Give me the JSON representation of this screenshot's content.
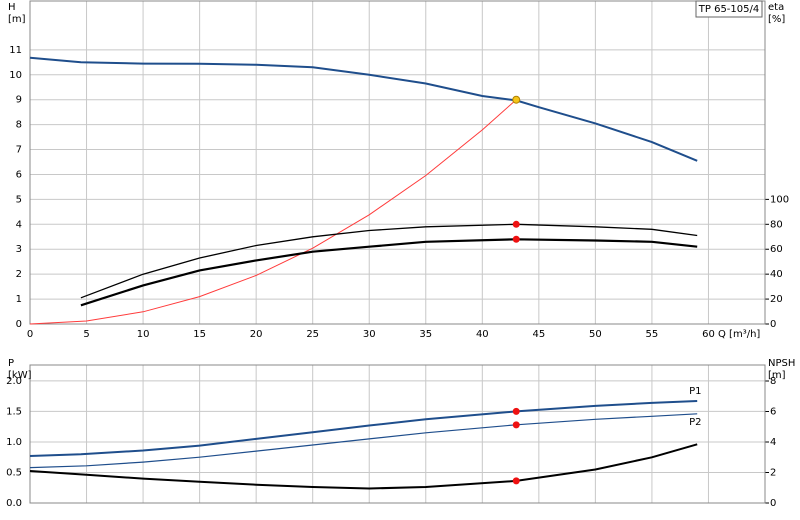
{
  "chart_data": [
    {
      "type": "line",
      "y_label": "H",
      "y_unit": "[m]",
      "y2_label": "eta",
      "y2_unit": "[%]",
      "x_label": "Q [m³/h]",
      "title": "TP 65-105/4",
      "xlim": [
        0,
        65
      ],
      "xticks": [
        0,
        5,
        10,
        15,
        20,
        25,
        30,
        35,
        40,
        45,
        50,
        55,
        60
      ],
      "ylim": [
        0,
        12.96
      ],
      "yticks": [
        0,
        1,
        2,
        3,
        4,
        5,
        6,
        7,
        8,
        9,
        10,
        11
      ],
      "y2lim": [
        0,
        259.2
      ],
      "y2ticks": [
        0,
        20,
        40,
        60,
        80,
        100
      ],
      "grid": true,
      "series": [
        {
          "style": "line",
          "color": "#1f4e8c",
          "width": 2,
          "x": [
            0,
            4.5,
            10,
            15,
            20,
            25,
            30,
            35,
            40,
            43,
            45,
            50,
            55,
            59
          ],
          "values": [
            10.68,
            10.5,
            10.45,
            10.44,
            10.4,
            10.3,
            10.0,
            9.65,
            9.15,
            8.97,
            8.7,
            8.05,
            7.3,
            6.55
          ]
        },
        {
          "style": "line",
          "color": "#ff3b3b",
          "width": 1,
          "x": [
            0,
            5,
            10,
            15,
            20,
            25,
            30,
            35,
            40,
            43
          ],
          "values": [
            0,
            0.12,
            0.49,
            1.1,
            1.95,
            3.04,
            4.38,
            5.96,
            7.79,
            9.0
          ]
        },
        {
          "style": "line",
          "color": "#000000",
          "width": 1.3,
          "axis": "y2",
          "x": [
            4.5,
            10,
            15,
            20,
            25,
            30,
            35,
            43,
            50,
            55,
            59
          ],
          "values": [
            21,
            40,
            53,
            63,
            70,
            75,
            78,
            80,
            78,
            76,
            71
          ]
        },
        {
          "style": "line",
          "color": "#000000",
          "width": 2.2,
          "axis": "y2",
          "x": [
            4.5,
            10,
            15,
            20,
            25,
            30,
            35,
            43,
            50,
            55,
            59
          ],
          "values": [
            15,
            31,
            43,
            51,
            58,
            62,
            66,
            68,
            67,
            66,
            62
          ]
        },
        {
          "style": "point",
          "color": "#f5c518",
          "x": [
            43
          ],
          "values": [
            9.0
          ]
        },
        {
          "style": "point",
          "color": "#ee1111",
          "axis": "y2",
          "x": [
            43,
            43
          ],
          "values": [
            80,
            68
          ]
        }
      ]
    },
    {
      "type": "line",
      "y_label": "P",
      "y_unit": "[kW]",
      "y2_label": "NPSH",
      "y2_unit": "[m]",
      "xlim": [
        0,
        65
      ],
      "x_grid": [
        0,
        5,
        10,
        15,
        20,
        25,
        30,
        35,
        40,
        45,
        50,
        55,
        60
      ],
      "ylim": [
        0,
        2.26
      ],
      "yticks": [
        {
          "value": 0,
          "label": "0.0"
        },
        {
          "value": 0.5,
          "label": "0.5"
        },
        {
          "value": 1,
          "label": "1.0"
        },
        {
          "value": 1.5,
          "label": "1.5"
        },
        {
          "value": 2,
          "label": "2.0"
        }
      ],
      "y2lim": [
        0,
        9.05
      ],
      "y2ticks": [
        0,
        2,
        4,
        6,
        8
      ],
      "grid": true,
      "series": [
        {
          "style": "line",
          "name": "P1",
          "color": "#1f4e8c",
          "width": 2,
          "x": [
            0,
            4.5,
            10,
            15,
            20,
            25,
            30,
            35,
            43,
            50,
            55,
            59
          ],
          "values": [
            0.77,
            0.8,
            0.86,
            0.94,
            1.05,
            1.16,
            1.27,
            1.37,
            1.5,
            1.59,
            1.64,
            1.67
          ]
        },
        {
          "style": "line",
          "name": "P2",
          "color": "#1f4e8c",
          "width": 1.2,
          "x": [
            0,
            5,
            10,
            15,
            20,
            25,
            30,
            35,
            43,
            50,
            55,
            59
          ],
          "values": [
            0.58,
            0.61,
            0.67,
            0.75,
            0.85,
            0.95,
            1.05,
            1.15,
            1.28,
            1.37,
            1.42,
            1.46
          ]
        },
        {
          "style": "line",
          "color": "#000000",
          "width": 2,
          "axis": "y2",
          "x": [
            0,
            5,
            10,
            15,
            20,
            25,
            30,
            35,
            43,
            50,
            55,
            59
          ],
          "values": [
            2.1,
            1.85,
            1.6,
            1.4,
            1.2,
            1.05,
            0.95,
            1.05,
            1.45,
            2.2,
            3.0,
            3.85
          ]
        },
        {
          "style": "point",
          "color": "#ee1111",
          "x": [
            43,
            43
          ],
          "values": [
            1.5,
            1.28
          ]
        },
        {
          "style": "point",
          "color": "#ee1111",
          "axis": "y2",
          "x": [
            43
          ],
          "values": [
            1.45
          ]
        }
      ]
    }
  ]
}
